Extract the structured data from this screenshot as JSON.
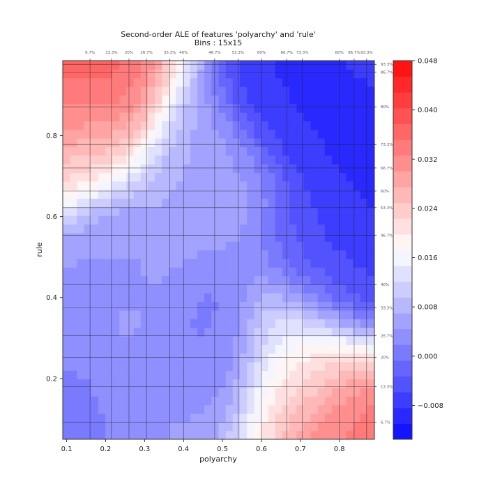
{
  "chart_data": {
    "type": "heatmap",
    "title": "Second-order ALE of features 'polyarchy' and 'rule'",
    "subtitle": "Bins : 15x15",
    "xlabel": "polyarchy",
    "ylabel": "rule",
    "xlim": [
      0.09,
      0.89
    ],
    "ylim": [
      0.05,
      0.985
    ],
    "x_ticks": [
      0.1,
      0.2,
      0.3,
      0.4,
      0.5,
      0.6,
      0.7,
      0.8
    ],
    "x_tick_labels": [
      "0.1",
      "0.2",
      "0.3",
      "0.4",
      "0.5",
      "0.6",
      "0.7",
      "0.8"
    ],
    "y_ticks": [
      0.2,
      0.4,
      0.6,
      0.8
    ],
    "y_tick_labels": [
      "0.2",
      "0.4",
      "0.6",
      "0.8"
    ],
    "x_quantiles": [
      {
        "label": "6.7%",
        "value": 0.16
      },
      {
        "label": "13.3%",
        "value": 0.215
      },
      {
        "label": "20%",
        "value": 0.26
      },
      {
        "label": "26.7%",
        "value": 0.305
      },
      {
        "label": "33.3%",
        "value": 0.365
      },
      {
        "label": "40%",
        "value": 0.4
      },
      {
        "label": "46.7%",
        "value": 0.48
      },
      {
        "label": "53.3%",
        "value": 0.54
      },
      {
        "label": "60%",
        "value": 0.6
      },
      {
        "label": "66.7%",
        "value": 0.665
      },
      {
        "label": "73.3%",
        "value": 0.705
      },
      {
        "label": "80%",
        "value": 0.8
      },
      {
        "label": "86.7%",
        "value": 0.838
      },
      {
        "label": "93.3%",
        "value": 0.87
      }
    ],
    "y_quantiles": [
      {
        "label": "6.7%",
        "value": 0.092
      },
      {
        "label": "13.3%",
        "value": 0.18
      },
      {
        "label": "20%",
        "value": 0.252
      },
      {
        "label": "26.7%",
        "value": 0.306
      },
      {
        "label": "33.3%",
        "value": 0.375
      },
      {
        "label": "40%",
        "value": 0.432
      },
      {
        "label": "46.7%",
        "value": 0.554
      },
      {
        "label": "53.3%",
        "value": 0.622
      },
      {
        "label": "60%",
        "value": 0.663
      },
      {
        "label": "66.7%",
        "value": 0.72
      },
      {
        "label": "73.3%",
        "value": 0.778
      },
      {
        "label": "80%",
        "value": 0.871
      },
      {
        "label": "86.7%",
        "value": 0.957
      },
      {
        "label": "93.3%",
        "value": 0.976
      }
    ],
    "colorbar": {
      "min": -0.0135,
      "max": 0.048,
      "ticks": [
        -0.008,
        0.0,
        0.008,
        0.016,
        0.024,
        0.032,
        0.04,
        0.048
      ],
      "tick_labels": [
        "−0.008",
        "0.000",
        "0.008",
        "0.016",
        "0.024",
        "0.032",
        "0.040",
        "0.048"
      ],
      "levels": 24,
      "colormap": "blue-white-red (bwr)"
    },
    "ale_features": [
      {
        "x": 0.1,
        "y": 0.98,
        "value": 0.046
      },
      {
        "x": 0.15,
        "y": 0.955,
        "value": 0.042
      },
      {
        "x": 0.1,
        "y": 0.78,
        "value": 0.028
      },
      {
        "x": 0.84,
        "y": 0.06,
        "value": 0.046
      },
      {
        "x": 0.76,
        "y": 0.15,
        "value": 0.032
      },
      {
        "x": 0.68,
        "y": 0.26,
        "value": 0.02
      },
      {
        "x": 0.66,
        "y": 0.9,
        "value": -0.012
      },
      {
        "x": 0.86,
        "y": 0.72,
        "value": -0.012
      },
      {
        "x": 0.86,
        "y": 0.51,
        "value": -0.012
      },
      {
        "x": 0.78,
        "y": 0.48,
        "value": -0.006
      },
      {
        "x": 0.48,
        "y": 0.7,
        "value": 0.007
      },
      {
        "x": 0.28,
        "y": 0.42,
        "value": 0.006
      },
      {
        "x": 0.33,
        "y": 0.16,
        "value": 0.005
      },
      {
        "x": 0.14,
        "y": 0.09,
        "value": 0.0
      },
      {
        "x": 0.47,
        "y": 0.3,
        "value": -0.002
      },
      {
        "x": 0.2,
        "y": 0.5,
        "value": 0.002
      }
    ]
  }
}
